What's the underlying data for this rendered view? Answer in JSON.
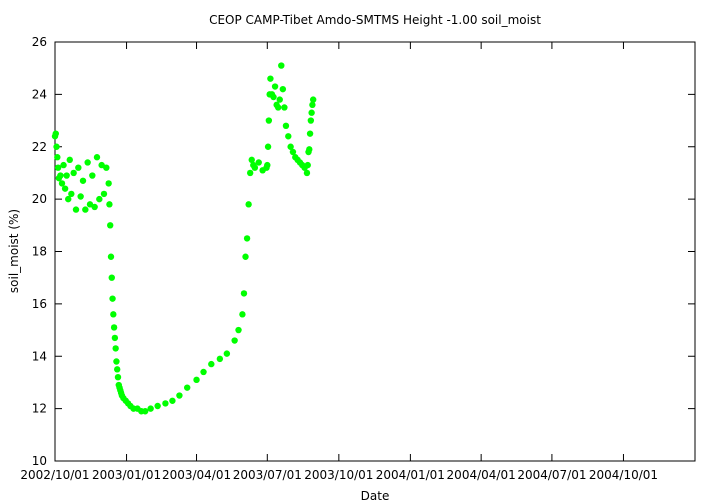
{
  "chart_data": {
    "type": "scatter",
    "title": "CEOP CAMP-Tibet Amdo-SMTMS Height -1.00 soil_moist",
    "xlabel": "Date",
    "ylabel": "soil_moist (%)",
    "xlim": [
      "2002-10-01",
      "2005-01-01"
    ],
    "ylim": [
      10,
      26
    ],
    "x_ticks": [
      "2002/10/01",
      "2003/01/01",
      "2003/04/01",
      "2003/07/01",
      "2003/10/01",
      "2004/01/01",
      "2004/04/01",
      "2004/07/01",
      "2004/10/01"
    ],
    "y_ticks": [
      10,
      12,
      14,
      16,
      18,
      20,
      22,
      24,
      26
    ],
    "grid": false,
    "marker_color": "#00ff00",
    "series": [
      {
        "x": [
          "2002-10-01",
          "2002-10-02",
          "2002-10-03",
          "2002-10-04",
          "2002-10-05",
          "2002-10-06",
          "2002-10-08",
          "2002-10-10",
          "2002-10-12",
          "2002-10-14",
          "2002-10-16",
          "2002-10-18",
          "2002-10-20",
          "2002-10-22",
          "2002-10-25",
          "2002-10-28",
          "2002-10-31",
          "2002-11-03",
          "2002-11-06",
          "2002-11-09",
          "2002-11-12",
          "2002-11-15",
          "2002-11-18",
          "2002-11-21",
          "2002-11-24",
          "2002-11-27",
          "2002-11-30",
          "2002-12-03",
          "2002-12-06",
          "2002-12-09",
          "2002-12-10",
          "2002-12-11",
          "2002-12-12",
          "2002-12-13",
          "2002-12-14",
          "2002-12-15",
          "2002-12-16",
          "2002-12-17",
          "2002-12-18",
          "2002-12-19",
          "2002-12-20",
          "2002-12-21",
          "2002-12-22",
          "2002-12-23",
          "2002-12-24",
          "2002-12-25",
          "2002-12-26",
          "2002-12-28",
          "2002-12-31",
          "2003-01-03",
          "2003-01-06",
          "2003-01-10",
          "2003-01-15",
          "2003-01-20",
          "2003-01-25",
          "2003-02-01",
          "2003-02-10",
          "2003-02-20",
          "2003-03-01",
          "2003-03-10",
          "2003-03-20",
          "2003-04-01",
          "2003-04-10",
          "2003-04-20",
          "2003-05-01",
          "2003-05-10",
          "2003-05-20",
          "2003-05-25",
          "2003-05-30",
          "2003-06-01",
          "2003-06-03",
          "2003-06-05",
          "2003-06-07",
          "2003-06-09",
          "2003-06-11",
          "2003-06-13",
          "2003-06-15",
          "2003-06-20",
          "2003-06-25",
          "2003-06-30",
          "2003-07-01",
          "2003-07-02",
          "2003-07-03",
          "2003-07-04",
          "2003-07-05",
          "2003-07-07",
          "2003-07-09",
          "2003-07-11",
          "2003-07-13",
          "2003-07-15",
          "2003-07-17",
          "2003-07-19",
          "2003-07-21",
          "2003-07-23",
          "2003-07-25",
          "2003-07-28",
          "2003-07-31",
          "2003-08-03",
          "2003-08-06",
          "2003-08-09",
          "2003-08-12",
          "2003-08-15",
          "2003-08-18",
          "2003-08-21",
          "2003-08-22",
          "2003-08-23",
          "2003-08-24",
          "2003-08-25",
          "2003-08-26",
          "2003-08-27",
          "2003-08-28",
          "2003-08-29"
        ],
        "y": [
          22.4,
          22.5,
          22.0,
          21.6,
          21.2,
          20.8,
          20.9,
          20.6,
          21.3,
          20.4,
          20.9,
          20.0,
          21.5,
          20.2,
          21.0,
          19.6,
          21.2,
          20.1,
          20.7,
          19.6,
          21.4,
          19.8,
          20.9,
          19.7,
          21.6,
          20.0,
          21.3,
          20.2,
          21.2,
          20.6,
          19.8,
          19.0,
          17.8,
          17.0,
          16.2,
          15.6,
          15.1,
          14.7,
          14.3,
          13.8,
          13.5,
          13.2,
          12.9,
          12.8,
          12.7,
          12.6,
          12.5,
          12.4,
          12.3,
          12.2,
          12.1,
          12.0,
          12.0,
          11.9,
          11.9,
          12.0,
          12.1,
          12.2,
          12.3,
          12.5,
          12.8,
          13.1,
          13.4,
          13.7,
          13.9,
          14.1,
          14.6,
          15.0,
          15.6,
          16.4,
          17.8,
          18.5,
          19.8,
          21.0,
          21.5,
          21.3,
          21.2,
          21.4,
          21.1,
          21.2,
          21.3,
          22.0,
          23.0,
          24.0,
          24.6,
          24.0,
          23.9,
          24.3,
          23.6,
          23.5,
          23.8,
          25.1,
          24.2,
          23.5,
          22.8,
          22.4,
          22.0,
          21.8,
          21.6,
          21.5,
          21.4,
          21.3,
          21.2,
          21.0,
          21.3,
          21.8,
          21.9,
          22.5,
          23.0,
          23.3,
          23.6,
          23.8
        ]
      }
    ]
  }
}
